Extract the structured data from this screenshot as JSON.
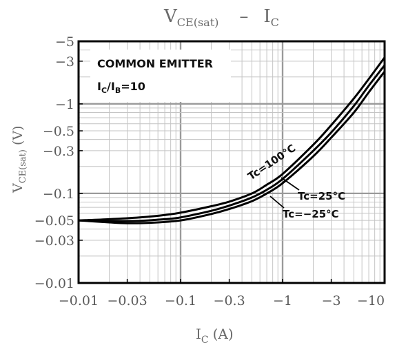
{
  "chart_data": {
    "type": "line",
    "title": {
      "main": "V",
      "main_sub": "CE(sat)",
      "sep": "–",
      "tail": "I",
      "tail_sub": "C"
    },
    "xlabel": {
      "main": "I",
      "sub": "C",
      "unit": "(A)"
    },
    "ylabel": {
      "main": "V",
      "sub": "CE(sat)",
      "unit": "(V)"
    },
    "x_scale": "log",
    "y_scale": "log",
    "x_ticks": [
      {
        "value": 0.01,
        "label": "−0.01"
      },
      {
        "value": 0.03,
        "label": "−0.03"
      },
      {
        "value": 0.1,
        "label": "−0.1"
      },
      {
        "value": 0.3,
        "label": "−0.3"
      },
      {
        "value": 1,
        "label": "−1"
      },
      {
        "value": 3,
        "label": "−3"
      },
      {
        "value": 10,
        "label": "−10"
      }
    ],
    "y_ticks": [
      {
        "value": 0.01,
        "label": "−0.01"
      },
      {
        "value": 0.03,
        "label": "−0.03"
      },
      {
        "value": 0.05,
        "label": "−0.05"
      },
      {
        "value": 0.1,
        "label": "−0.1"
      },
      {
        "value": 0.3,
        "label": "−0.3"
      },
      {
        "value": 0.5,
        "label": "−0.5"
      },
      {
        "value": 1,
        "label": "−1"
      },
      {
        "value": 3,
        "label": "−3"
      },
      {
        "value": 5,
        "label": "−5"
      }
    ],
    "xlim": [
      0.01,
      10
    ],
    "ylim": [
      0.01,
      5
    ],
    "grid": true,
    "annotation": {
      "line1": "COMMON EMITTER",
      "line2_main": "I",
      "line2_sub1": "C",
      "line2_mid": "/I",
      "line2_sub2": "B",
      "line2_tail": "=10"
    },
    "series": [
      {
        "name": "Tc=100°C",
        "x": [
          0.01,
          0.02,
          0.04,
          0.07,
          0.1,
          0.2,
          0.3,
          0.5,
          0.7,
          1,
          2,
          3,
          5,
          7,
          10
        ],
        "y": [
          0.05,
          0.0515,
          0.054,
          0.0575,
          0.061,
          0.072,
          0.081,
          0.1,
          0.125,
          0.165,
          0.35,
          0.58,
          1.15,
          1.9,
          3.3
        ]
      },
      {
        "name": "Tc=25°C",
        "x": [
          0.01,
          0.02,
          0.04,
          0.07,
          0.1,
          0.2,
          0.3,
          0.5,
          0.7,
          1,
          2,
          3,
          5,
          7,
          10
        ],
        "y": [
          0.05,
          0.049,
          0.0495,
          0.0515,
          0.054,
          0.064,
          0.073,
          0.09,
          0.11,
          0.145,
          0.3,
          0.48,
          0.95,
          1.6,
          2.7
        ]
      },
      {
        "name": "Tc=−25°C",
        "x": [
          0.01,
          0.02,
          0.03,
          0.05,
          0.1,
          0.2,
          0.3,
          0.5,
          0.7,
          1,
          2,
          3,
          5,
          7,
          10
        ],
        "y": [
          0.05,
          0.0475,
          0.0465,
          0.047,
          0.05,
          0.059,
          0.067,
          0.082,
          0.1,
          0.13,
          0.26,
          0.42,
          0.8,
          1.35,
          2.3
        ]
      }
    ]
  }
}
